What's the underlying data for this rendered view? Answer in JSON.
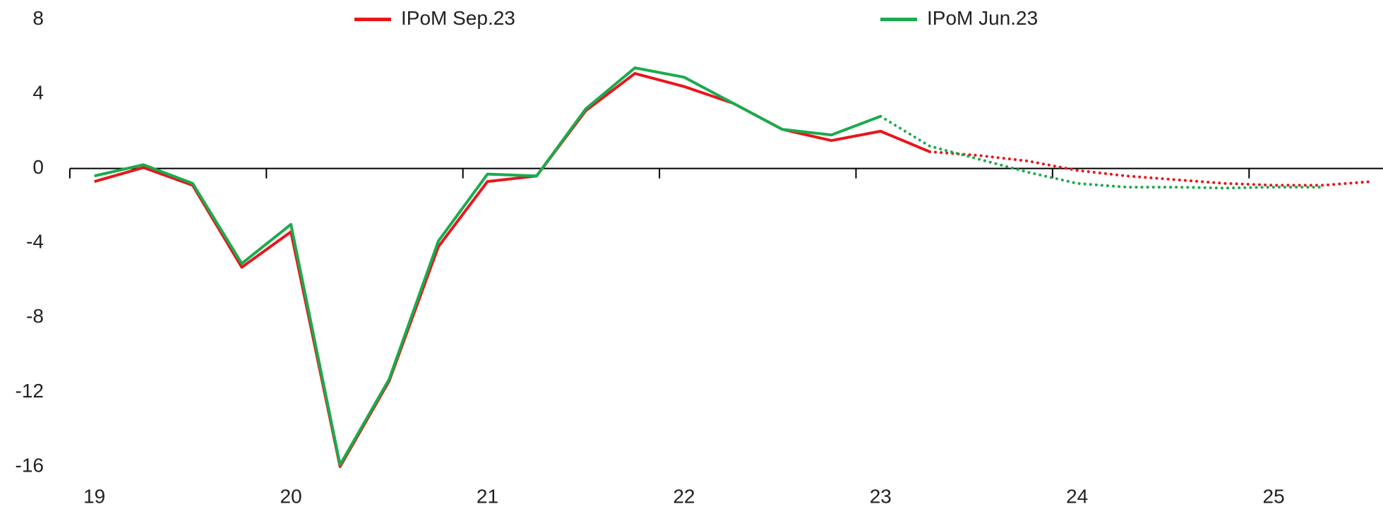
{
  "chart_data": {
    "type": "line",
    "categories": [
      "19",
      null,
      null,
      null,
      "20",
      null,
      null,
      null,
      "21",
      null,
      null,
      null,
      "22",
      null,
      null,
      null,
      "23",
      null,
      null,
      null,
      "24",
      null,
      null,
      null,
      "25",
      null,
      null
    ],
    "series": [
      {
        "name": "IPoM Sep.23",
        "color": "#e8161b",
        "forecast_from": 17,
        "values": [
          -0.7,
          0.05,
          -0.9,
          -5.3,
          -3.4,
          -16,
          -11.4,
          -4.2,
          -0.7,
          -0.4,
          3.1,
          5.1,
          4.4,
          3.5,
          2.1,
          1.5,
          2.0,
          0.9,
          0.7,
          0.4,
          -0.1,
          -0.4,
          -0.6,
          -0.8,
          -0.9,
          -0.9,
          -0.7
        ]
      },
      {
        "name": "IPoM Jun.23",
        "color": "#1aab4e",
        "forecast_from": 16,
        "values": [
          -0.4,
          0.2,
          -0.8,
          -5.1,
          -3.0,
          -15.9,
          -11.3,
          -3.9,
          -0.3,
          -0.4,
          3.2,
          5.4,
          4.9,
          3.5,
          2.1,
          1.8,
          2.8,
          1.2,
          0.5,
          -0.2,
          -0.8,
          -1.0,
          -1.0,
          -1.05,
          -1.0,
          -1.0,
          null
        ]
      }
    ],
    "ylim": [
      -16,
      8
    ],
    "yticks": [
      -16,
      -12,
      -8,
      -4,
      0,
      4,
      8
    ]
  }
}
